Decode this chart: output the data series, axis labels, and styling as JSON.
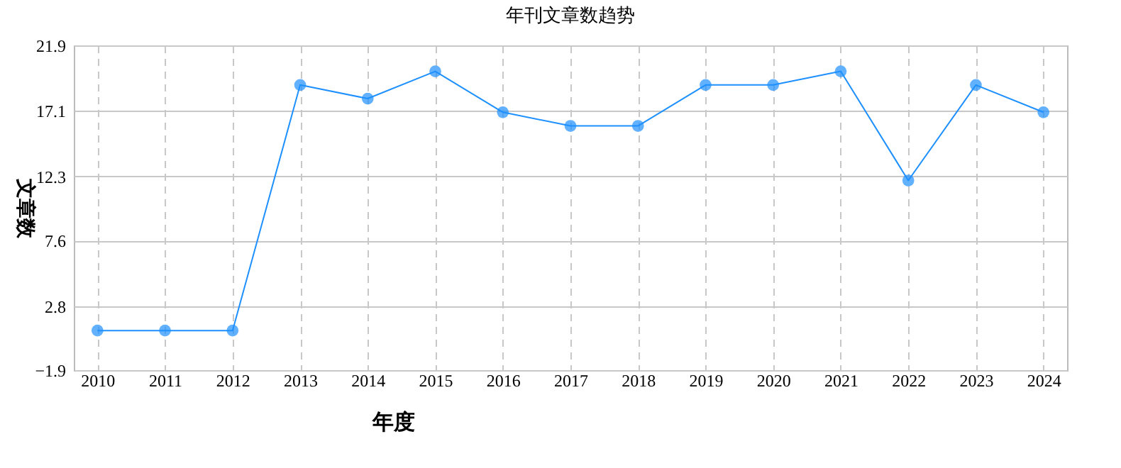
{
  "chart_data": {
    "type": "line",
    "title": "年刊文章数趋势",
    "xlabel": "年度",
    "ylabel": "文章数",
    "categories": [
      "2010",
      "2011",
      "2012",
      "2013",
      "2014",
      "2015",
      "2016",
      "2017",
      "2018",
      "2019",
      "2020",
      "2021",
      "2022",
      "2023",
      "2024"
    ],
    "series": [
      {
        "color": "#1e90ff",
        "values": [
          1,
          1,
          1,
          19,
          18,
          20,
          17,
          16,
          16,
          19,
          19,
          20,
          12,
          19,
          17
        ]
      }
    ],
    "ylim": [
      -1.9,
      21.9
    ],
    "yticks": [
      -1.9,
      2.8,
      7.6,
      12.3,
      17.1,
      21.9
    ],
    "grid": true,
    "marker": "circle",
    "line_style": "solid"
  }
}
